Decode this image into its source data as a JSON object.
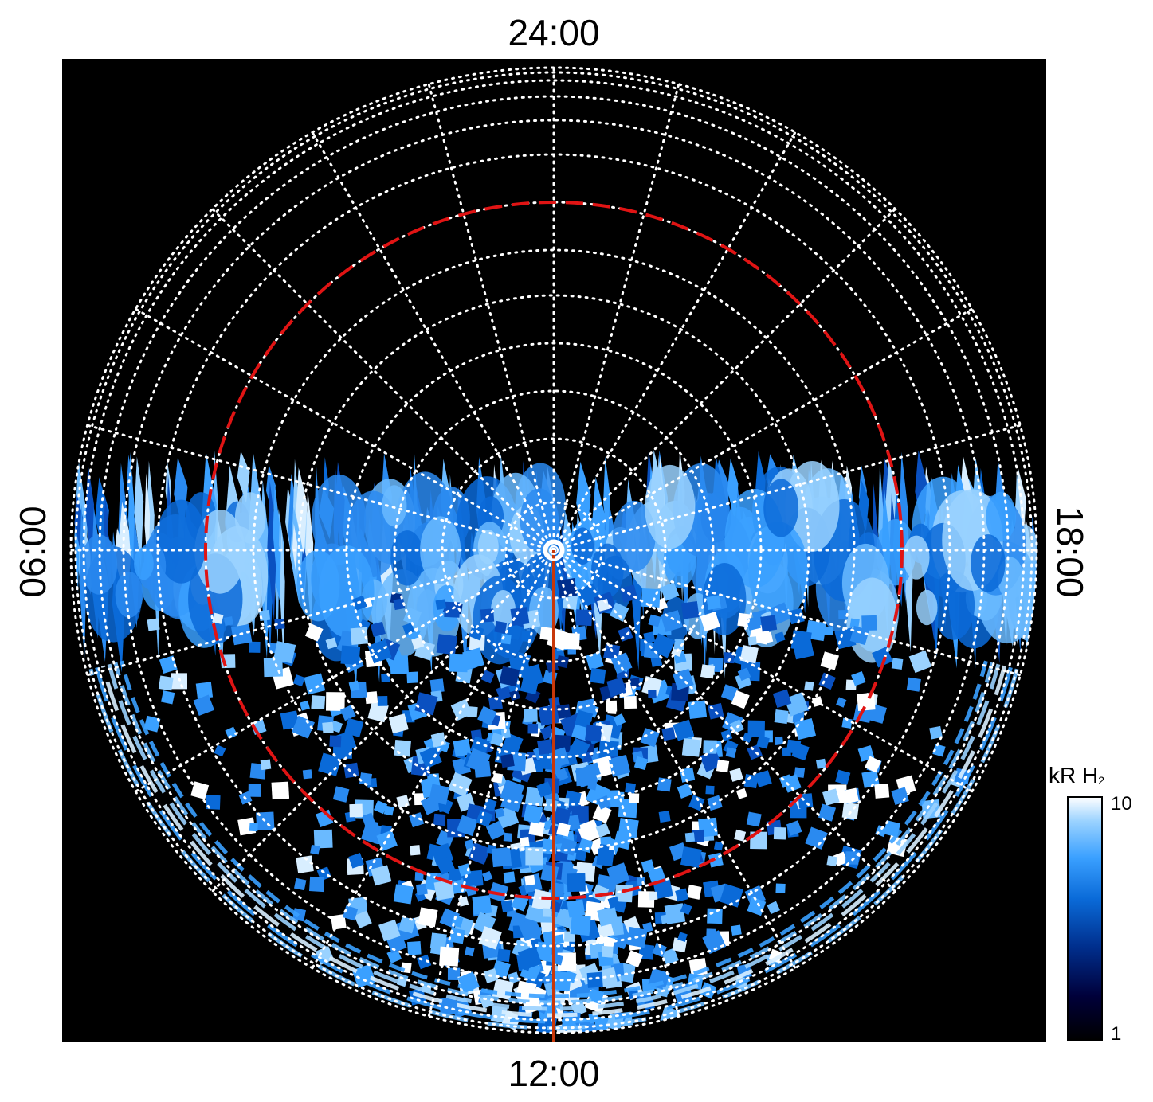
{
  "local_time_labels": {
    "top": "24:00",
    "bottom": "12:00",
    "left": "06:00",
    "right": "18:00"
  },
  "colorbar": {
    "title_main": "kR H",
    "title_sub": "2",
    "max_label": "10",
    "min_label": "1",
    "scale": "log",
    "colors": [
      "#000000",
      "#00003a",
      "#002e8c",
      "#0a6ad8",
      "#3aa0ff",
      "#9ad2ff",
      "#ffffff"
    ]
  },
  "colors": {
    "background": "#000000",
    "grid": "#ffffff",
    "dashed_circle": "#e01414",
    "meridian_line": "#c8380a"
  },
  "grid": {
    "style": "dotted",
    "meridians_every_hours": 1,
    "dashed_circle": true,
    "sun_meridian": "12:00"
  }
}
